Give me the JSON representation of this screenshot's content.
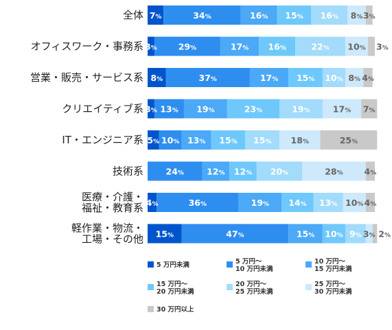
{
  "chart_data": {
    "type": "bar",
    "orientation": "horizontal",
    "stacked": true,
    "normalized": true,
    "unit": "%",
    "categories": [
      [
        "全体"
      ],
      [
        "オフィスワーク・事務系"
      ],
      [
        "営業・販売・サービス系"
      ],
      [
        "クリエイティブ系"
      ],
      [
        "IT・エンジニア系"
      ],
      [
        "技術系"
      ],
      [
        "医療・介護・",
        "福祉・教育系"
      ],
      [
        "軽作業・物流・",
        "工場・その他"
      ]
    ],
    "series": [
      {
        "name": "5 万円未満",
        "color": "#0055cc",
        "values": [
          7,
          3,
          8,
          3,
          5,
          0,
          4,
          15
        ]
      },
      {
        "name": "5 万円～\n10 万円未満",
        "color": "#2e8ef0",
        "values": [
          34,
          29,
          37,
          13,
          10,
          24,
          36,
          47
        ]
      },
      {
        "name": "10 万円～\n15 万円未満",
        "color": "#4ba9f7",
        "values": [
          16,
          17,
          17,
          19,
          13,
          12,
          19,
          15
        ]
      },
      {
        "name": "15 万円～\n20 万円未満",
        "color": "#6ec8fc",
        "values": [
          15,
          16,
          15,
          23,
          15,
          12,
          14,
          10
        ]
      },
      {
        "name": "20 万円～\n25 万円未満",
        "color": "#a2dbfb",
        "values": [
          16,
          22,
          10,
          19,
          15,
          20,
          13,
          9
        ]
      },
      {
        "name": "25 万円～\n30 万円未満",
        "color": "#cde9fb",
        "values": [
          8,
          10,
          8,
          17,
          18,
          28,
          10,
          3
        ]
      },
      {
        "name": "30 万円以上",
        "color": "#c9c9c9",
        "values": [
          3,
          3,
          4,
          7,
          25,
          4,
          4,
          2
        ]
      }
    ],
    "xlim": [
      0,
      100
    ],
    "legend_position": "bottom"
  }
}
